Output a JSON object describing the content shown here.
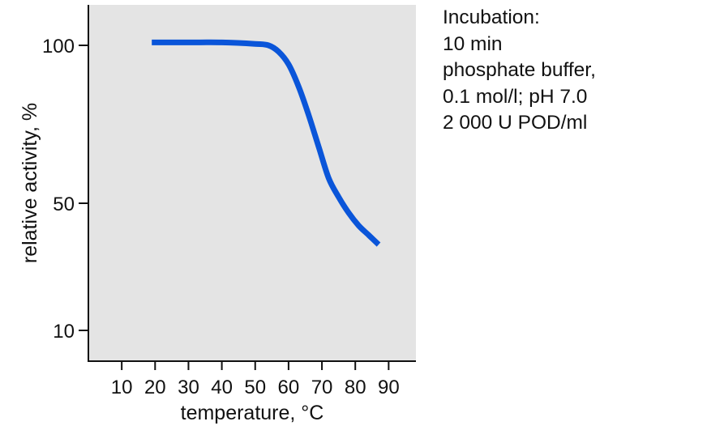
{
  "chart_data": {
    "type": "line",
    "title": "",
    "xlabel": "temperature, °C",
    "ylabel": "relative activity, %",
    "x_ticks": [
      10,
      20,
      30,
      40,
      50,
      60,
      70,
      80,
      90
    ],
    "y_ticks": [
      10,
      50,
      100
    ],
    "y_scale": "non-linear (100 at top, 50 mid, 10 near bottom)",
    "grid": false,
    "legend": null,
    "plot_background": "#e4e4e4",
    "series": [
      {
        "name": "relative activity",
        "color": "#0a55d9",
        "x": [
          19,
          30,
          40,
          50,
          54,
          57,
          60,
          63,
          66,
          69,
          72,
          75,
          78,
          81,
          84,
          87
        ],
        "y": [
          101,
          101,
          101,
          100.5,
          100,
          98,
          94,
          87,
          78,
          68,
          58,
          52,
          47,
          43,
          40,
          37
        ]
      }
    ],
    "annotation": [
      "Incubation:",
      "10 min",
      "phosphate buffer,",
      "0.1 mol/l; pH 7.0",
      "2 000 U POD/ml"
    ]
  },
  "axes": {
    "x_tick_labels": [
      "10",
      "20",
      "30",
      "40",
      "50",
      "60",
      "70",
      "80",
      "90"
    ],
    "y_tick_labels": [
      "100",
      "50",
      "10"
    ],
    "xlabel": "temperature, °C",
    "ylabel": "relative activity, %"
  },
  "annotation": {
    "line1": "Incubation:",
    "line2": "10 min",
    "line3": "phosphate buffer,",
    "line4": "0.1 mol/l; pH 7.0",
    "line5": "2 000 U POD/ml"
  }
}
